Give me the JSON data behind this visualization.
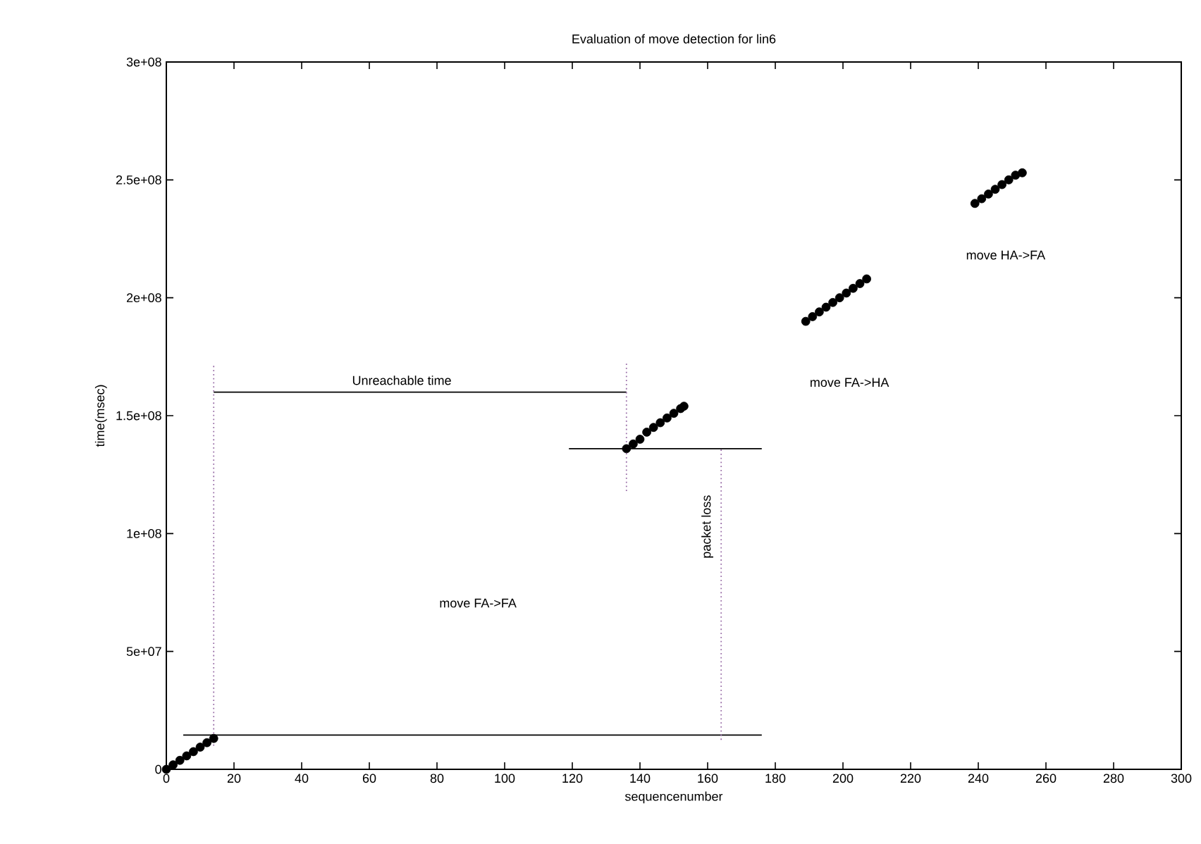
{
  "chart_data": {
    "type": "line",
    "title": "Evaluation of move detection for lin6",
    "xlabel": "sequencenumber",
    "ylabel": "time(msec)",
    "xlim": [
      0,
      300
    ],
    "xticks": [
      0,
      20,
      40,
      60,
      80,
      100,
      120,
      140,
      160,
      180,
      200,
      220,
      240,
      260,
      280,
      300
    ],
    "ylim": [
      0,
      300000000
    ],
    "yticks": [
      0,
      {
        "value": 50000000,
        "label": "5e+07"
      },
      {
        "value": 100000000,
        "label": "1e+08"
      },
      {
        "value": 150000000,
        "label": "1.5e+08"
      },
      {
        "value": 200000000,
        "label": "2e+08"
      },
      {
        "value": 250000000,
        "label": "2.5e+08"
      },
      {
        "value": 300000000,
        "label": "3e+08"
      }
    ],
    "series": [
      {
        "type": "scatter",
        "marker": "circle",
        "color": "#000000",
        "x": [
          0,
          2,
          4,
          6,
          8,
          10,
          12,
          14,
          136,
          138,
          140,
          142,
          144,
          146,
          148,
          150,
          152,
          153,
          189,
          191,
          193,
          195,
          197,
          199,
          201,
          203,
          205,
          207,
          239,
          241,
          243,
          245,
          247,
          249,
          251,
          253
        ],
        "values": [
          0,
          1900000,
          3800000,
          5700000,
          7500000,
          9400000,
          11300000,
          13100000,
          136000000,
          138000000,
          140000000,
          143000000,
          145000000,
          147000000,
          149000000,
          151000000,
          153000000,
          154000000,
          190000000,
          192000000,
          194000000,
          196000000,
          198000000,
          200000000,
          202000000,
          204000000,
          206000000,
          208000000,
          240000000,
          242000000,
          244000000,
          246000000,
          248000000,
          250000000,
          252000000,
          253000000
        ]
      },
      {
        "line_style": "solid",
        "color": "#000000",
        "x": [
          5,
          176
        ],
        "values": [
          14500000,
          14500000
        ]
      },
      {
        "line_style": "solid",
        "color": "#000000",
        "x": [
          14,
          136
        ],
        "values": [
          160000000,
          160000000
        ]
      },
      {
        "line_style": "solid",
        "color": "#000000",
        "x": [
          119,
          176
        ],
        "values": [
          136000000,
          136000000
        ]
      },
      {
        "line_style": "dotted",
        "color": "#9a6fa8",
        "x": [
          14,
          14
        ],
        "values": [
          10000000,
          172000000
        ]
      },
      {
        "line_style": "dotted",
        "color": "#9a6fa8",
        "x": [
          136,
          136
        ],
        "values": [
          118000000,
          173000000
        ]
      },
      {
        "line_style": "dotted",
        "color": "#9a6fa8",
        "x": [
          164,
          164
        ],
        "values": [
          12500000,
          136000000
        ]
      }
    ],
    "annotations": [
      "Unreachable time",
      "packet loss",
      "move FA->FA",
      "move FA->HA",
      "move HA->FA"
    ]
  }
}
